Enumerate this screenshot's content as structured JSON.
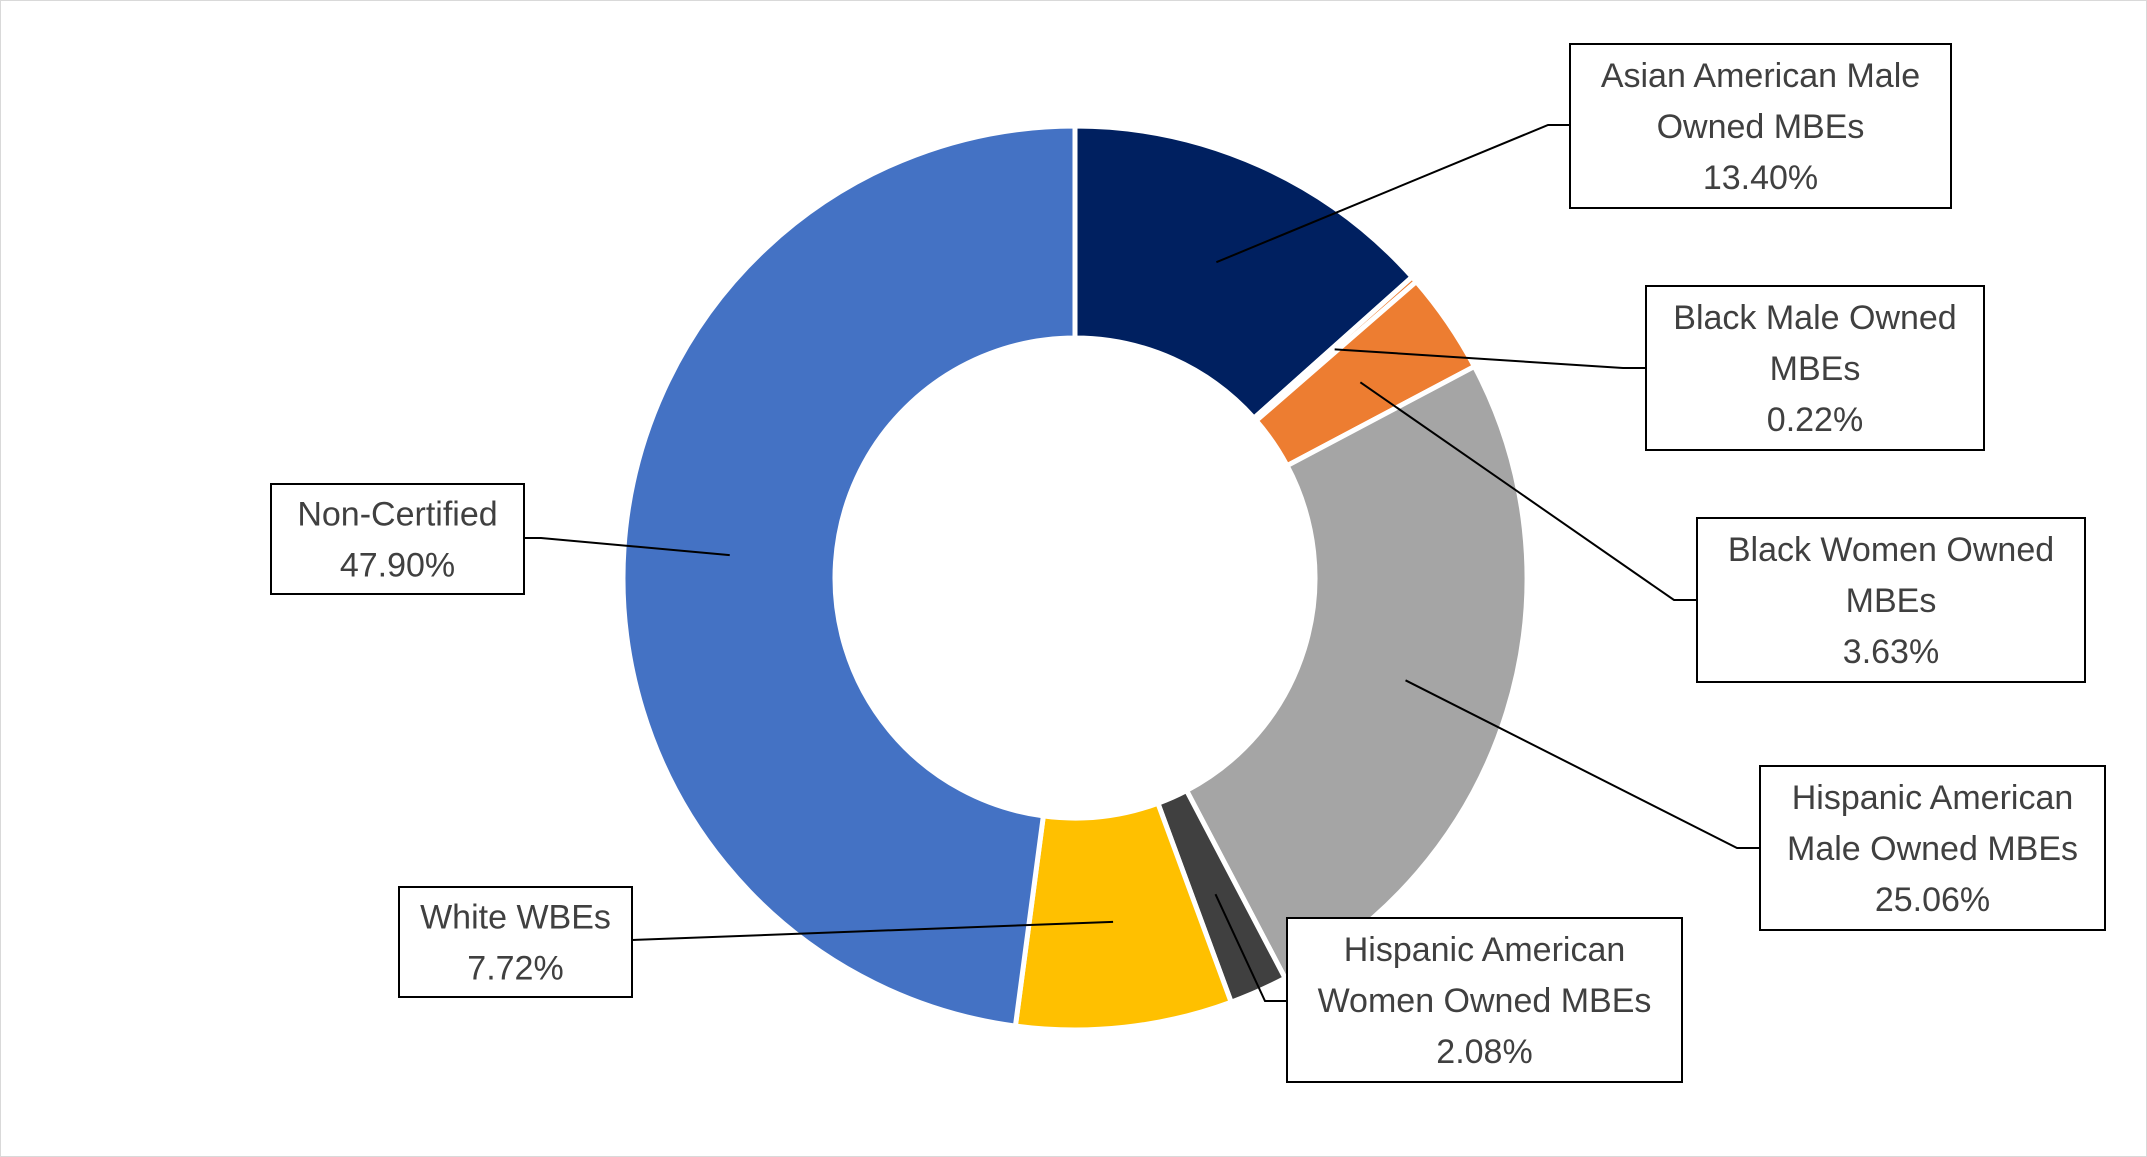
{
  "chart_data": {
    "type": "donut",
    "title": "",
    "legend": "none",
    "slices": [
      {
        "name": "Asian American Male Owned MBEs",
        "label_lines": [
          "Asian American Male",
          "Owned MBEs"
        ],
        "value": 13.4,
        "value_label": "13.40%",
        "color": "#002060"
      },
      {
        "name": "Black Male Owned MBEs",
        "label_lines": [
          "Black Male Owned",
          "MBEs"
        ],
        "value": 0.22,
        "value_label": "0.22%",
        "color": "#ed7d31"
      },
      {
        "name": "Black Women Owned MBEs",
        "label_lines": [
          "Black Women Owned",
          "MBEs"
        ],
        "value": 3.63,
        "value_label": "3.63%",
        "color": "#ed7d31"
      },
      {
        "name": "Hispanic American Male Owned MBEs",
        "label_lines": [
          "Hispanic American",
          "Male Owned MBEs"
        ],
        "value": 25.06,
        "value_label": "25.06%",
        "color": "#a5a5a5"
      },
      {
        "name": "Hispanic American Women Owned MBEs",
        "label_lines": [
          "Hispanic American",
          "Women Owned MBEs"
        ],
        "value": 2.08,
        "value_label": "2.08%",
        "color": "#404040"
      },
      {
        "name": "White WBEs",
        "label_lines": [
          "White WBEs"
        ],
        "value": 7.72,
        "value_label": "7.72%",
        "color": "#ffc000"
      },
      {
        "name": "Non-Certified",
        "label_lines": [
          "Non-Certified"
        ],
        "value": 47.9,
        "value_label": "47.90%",
        "color": "#4472c4"
      }
    ]
  }
}
